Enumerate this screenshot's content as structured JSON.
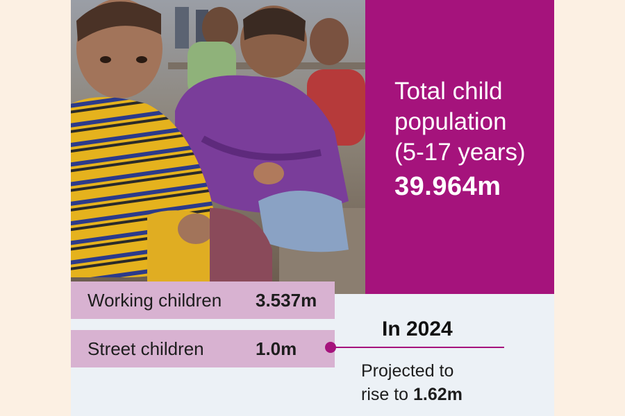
{
  "headline_stat": {
    "label_lines": [
      "Total child",
      "population",
      "(5-17 years)"
    ],
    "value": "39.964m"
  },
  "rows": [
    {
      "label": "Working children",
      "value": "3.537m"
    },
    {
      "label": "Street children",
      "value": "1.0m"
    }
  ],
  "projection": {
    "year": "In 2024",
    "line1": "Projected to",
    "line2_prefix": "rise to ",
    "line2_value": "1.62m"
  },
  "colors": {
    "magenta": "#a5137c",
    "row_background": "#d8b2d1",
    "panel_background": "#ecf1f6",
    "page_background": "#fcf0e3"
  }
}
